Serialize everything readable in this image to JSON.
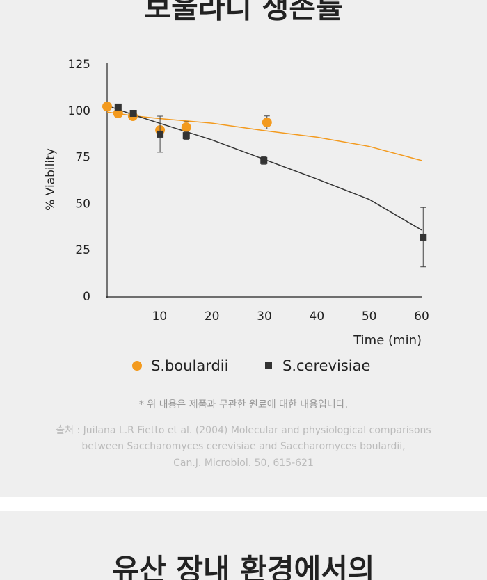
{
  "header": {
    "title": "보울라디 생존률"
  },
  "chart_data": {
    "type": "scatter",
    "ylabel": "% Viability",
    "xlabel": "Time (min)",
    "xlim": [
      0,
      60
    ],
    "xticks": [
      10,
      20,
      30,
      40,
      50,
      60
    ],
    "ylim": [
      0,
      125
    ],
    "yticks": [
      0,
      25,
      50,
      75,
      100,
      125
    ],
    "grid": false,
    "legend": "bottom",
    "series": [
      {
        "name": "S.boulardii",
        "color": "#f39a1e",
        "marker": "circle",
        "x": [
          0,
          2.1,
          4.9,
          10.1,
          15.1,
          30.5
        ],
        "values": [
          102.5,
          98.8,
          97.3,
          89.8,
          91.3,
          93.9
        ],
        "errors": [
          null,
          null,
          null,
          null,
          3,
          3.5
        ],
        "fit_x": [
          0,
          5,
          10,
          20,
          30,
          40,
          50,
          60
        ],
        "fit_values": [
          99.5,
          97.5,
          96,
          93.5,
          89.5,
          86,
          81,
          73.4
        ]
      },
      {
        "name": "S.cerevisiae",
        "color": "#333333",
        "marker": "square",
        "x": [
          2.1,
          5,
          10.1,
          15.1,
          29.9,
          60.3
        ],
        "values": [
          102.2,
          98.8,
          87.6,
          86.8,
          73.4,
          32.2
        ],
        "errors": [
          null,
          null,
          9.7,
          2,
          2,
          16
        ],
        "fit_x": [
          0,
          5,
          10,
          15,
          20,
          30,
          40,
          50,
          60
        ],
        "fit_values": [
          103,
          98,
          93.5,
          89,
          84.5,
          74,
          63.5,
          52.5,
          36
        ]
      }
    ]
  },
  "note": "* 위 내용은 제품과 무관한 원료에 대한 내용입니다.",
  "source": [
    "출처 : Juilana L.R Fietto et al. (2004) Molecular and physiological comparisons",
    "between Saccharomyces cerevisiae and Saccharomyces boulardii,",
    "Can.J. Microbiol. 50, 615-621"
  ],
  "next_section": {
    "title": "유산 장내 환경에서의"
  }
}
